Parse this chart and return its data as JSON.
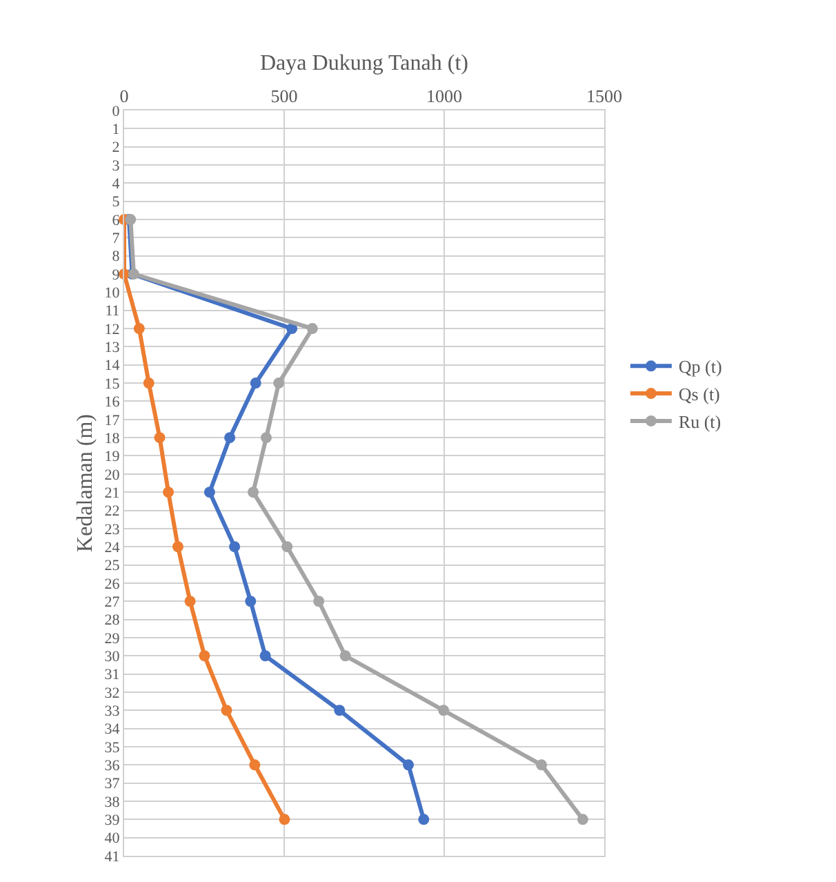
{
  "chart_data": {
    "type": "line",
    "orientation": "horizontal",
    "xlabel": "Daya Dukung Tanah (t)",
    "ylabel": "Kedalaman (m)",
    "x": [
      6,
      9,
      12,
      15,
      18,
      21,
      24,
      27,
      30,
      33,
      36,
      39
    ],
    "series": [
      {
        "name": "Qp (t)",
        "color": "#4472c4",
        "values": [
          15,
          25,
          524,
          411,
          330,
          267,
          345,
          395,
          441,
          673,
          888,
          936
        ]
      },
      {
        "name": "Qs (t)",
        "color": "#ed7d31",
        "values": [
          0,
          0,
          47,
          77,
          111,
          138,
          168,
          206,
          251,
          320,
          408,
          501
        ]
      },
      {
        "name": "Ru (t)",
        "color": "#a5a5a5",
        "values": [
          20,
          30,
          588,
          483,
          444,
          403,
          509,
          608,
          691,
          998,
          1304,
          1433
        ]
      }
    ],
    "xlim": [
      0,
      1500
    ],
    "xticks": [
      0,
      500,
      1000,
      1500
    ],
    "ylim": [
      41,
      0
    ],
    "yticks": [
      0,
      1,
      2,
      3,
      4,
      5,
      6,
      7,
      8,
      9,
      10,
      11,
      12,
      13,
      14,
      15,
      16,
      17,
      18,
      19,
      20,
      21,
      22,
      23,
      24,
      25,
      26,
      27,
      28,
      29,
      30,
      31,
      32,
      33,
      34,
      35,
      36,
      37,
      38,
      39,
      40,
      41
    ],
    "grid": true,
    "legend": "right",
    "marker": "circle",
    "line_style": "solid"
  }
}
